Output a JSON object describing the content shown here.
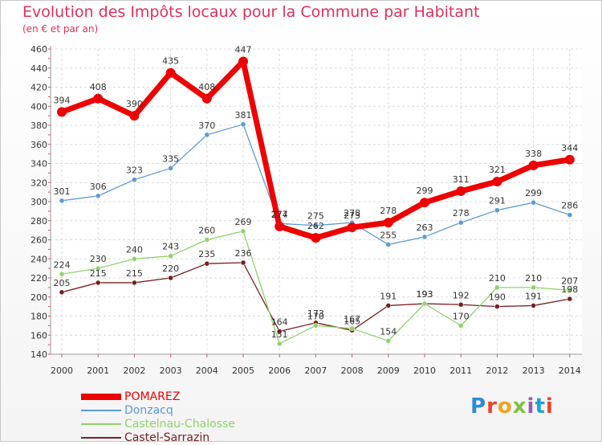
{
  "header": {
    "title": "Evolution des Impôts locaux pour la Commune par Habitant",
    "subtitle": "(en € et par an)"
  },
  "logo": {
    "text": "Proxiti",
    "colors": [
      "#2e8bd6",
      "#e8442b",
      "#f2a11f",
      "#7dc242",
      "#9b59b6",
      "#1ca3d6",
      "#e8442b"
    ]
  },
  "chart_data": {
    "type": "line",
    "x": [
      "2000",
      "2001",
      "2002",
      "2003",
      "2004",
      "2005",
      "2006",
      "2007",
      "2008",
      "2009",
      "2010",
      "2011",
      "2012",
      "2013",
      "2014"
    ],
    "ylim": [
      140,
      460
    ],
    "yticks": [
      140,
      160,
      180,
      200,
      220,
      240,
      260,
      280,
      300,
      320,
      340,
      360,
      380,
      400,
      420,
      440,
      460
    ],
    "grid": true,
    "legend_position": "bottom-left",
    "series": [
      {
        "name": "POMAREZ",
        "color": "#ee0000",
        "values": [
          394,
          408,
          390,
          435,
          408,
          447,
          274,
          262,
          273,
          278,
          299,
          311,
          321,
          338,
          344
        ]
      },
      {
        "name": "Donzacq",
        "color": "#5b9bd5",
        "values": [
          301,
          306,
          323,
          335,
          370,
          381,
          277,
          275,
          278,
          255,
          263,
          278,
          291,
          299,
          286
        ]
      },
      {
        "name": "Castelnau-Chalosse",
        "color": "#8fd36a",
        "values": [
          224,
          230,
          240,
          243,
          260,
          269,
          151,
          170,
          167,
          154,
          193,
          170,
          210,
          210,
          207
        ]
      },
      {
        "name": "Castel-Sarrazin",
        "color": "#7a1f1f",
        "values": [
          205,
          215,
          215,
          220,
          235,
          236,
          164,
          173,
          165,
          191,
          193,
          192,
          190,
          191,
          198
        ]
      }
    ]
  }
}
